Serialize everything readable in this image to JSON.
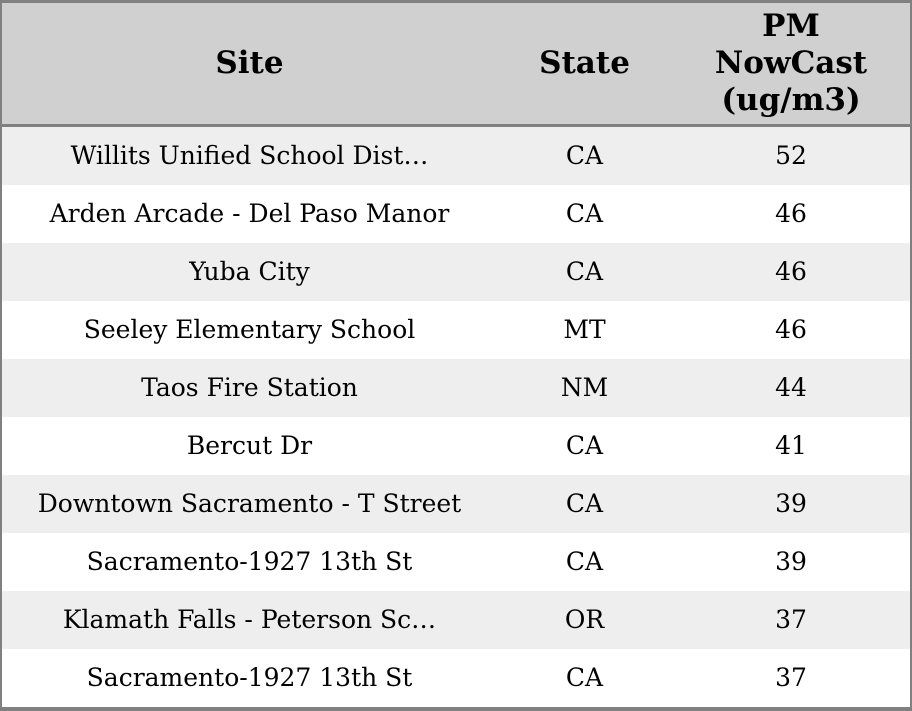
{
  "chart_data": {
    "type": "table",
    "title": "",
    "columns": [
      {
        "key": "site",
        "label": "Site"
      },
      {
        "key": "state",
        "label": "State"
      },
      {
        "key": "pm",
        "label": "PM\nNowCast\n(ug/m3)",
        "label_flat": "PM NowCast (ug/m3)"
      }
    ],
    "rows": [
      {
        "site": "Willits Unified School Dist…",
        "state": "CA",
        "pm": "52"
      },
      {
        "site": "Arden Arcade - Del Paso Manor",
        "state": "CA",
        "pm": "46"
      },
      {
        "site": "Yuba City",
        "state": "CA",
        "pm": "46"
      },
      {
        "site": "Seeley Elementary School",
        "state": "MT",
        "pm": "46"
      },
      {
        "site": "Taos Fire Station",
        "state": "NM",
        "pm": "44"
      },
      {
        "site": "Bercut Dr",
        "state": "CA",
        "pm": "41"
      },
      {
        "site": "Downtown Sacramento - T Street",
        "state": "CA",
        "pm": "39"
      },
      {
        "site": "Sacramento-1927 13th St",
        "state": "CA",
        "pm": "39"
      },
      {
        "site": "Klamath Falls - Peterson Sc…",
        "state": "OR",
        "pm": "37"
      },
      {
        "site": "Sacramento-1927 13th St",
        "state": "CA",
        "pm": "37"
      }
    ],
    "layout": {
      "grid": false,
      "row_striping": true
    }
  },
  "colors": {
    "border": "#808080",
    "header_bg": "#d0d0d0",
    "row_alt_bg": "#eeeeee",
    "row_bg": "#ffffff",
    "text": "#000000"
  }
}
